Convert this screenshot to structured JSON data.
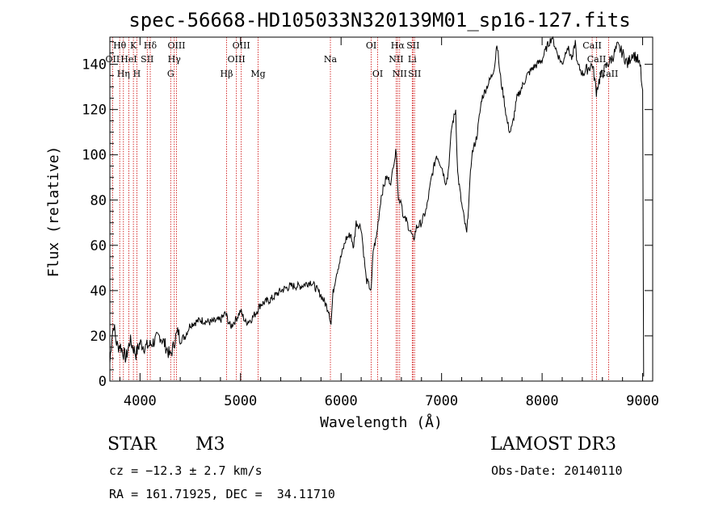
{
  "chart_data": {
    "type": "line",
    "title": "spec-56668-HD105033N320139M01_sp16-127.fits",
    "xlabel": "Wavelength (Å)",
    "ylabel": "Flux (relative)",
    "xlim": [
      3700,
      9100
    ],
    "ylim": [
      0,
      152
    ],
    "xticks": [
      4000,
      5000,
      6000,
      7000,
      8000,
      9000
    ],
    "yticks": [
      0,
      20,
      40,
      60,
      80,
      100,
      120,
      140
    ],
    "series": [
      {
        "name": "flux",
        "x": [
          3700,
          3720,
          3740,
          3760,
          3780,
          3800,
          3830,
          3860,
          3900,
          3930,
          3960,
          4000,
          4050,
          4100,
          4150,
          4200,
          4250,
          4300,
          4330,
          4350,
          4380,
          4400,
          4450,
          4500,
          4600,
          4700,
          4800,
          4850,
          4900,
          4950,
          5000,
          5050,
          5100,
          5150,
          5200,
          5300,
          5400,
          5500,
          5600,
          5700,
          5800,
          5880,
          5900,
          5920,
          5950,
          6000,
          6050,
          6100,
          6120,
          6150,
          6200,
          6250,
          6300,
          6320,
          6350,
          6400,
          6450,
          6500,
          6520,
          6550,
          6570,
          6600,
          6620,
          6650,
          6680,
          6700,
          6720,
          6750,
          6800,
          6850,
          6900,
          6950,
          7000,
          7040,
          7060,
          7080,
          7100,
          7140,
          7160,
          7200,
          7250,
          7300,
          7350,
          7400,
          7450,
          7500,
          7530,
          7550,
          7580,
          7600,
          7620,
          7650,
          7680,
          7700,
          7750,
          7800,
          7850,
          7900,
          7950,
          8000,
          8050,
          8100,
          8150,
          8200,
          8250,
          8300,
          8330,
          8350,
          8400,
          8450,
          8500,
          8540,
          8560,
          8600,
          8650,
          8700,
          8750,
          8800,
          8850,
          8900,
          8950,
          8980,
          9000,
          9010
        ],
        "values": [
          8,
          20,
          25,
          18,
          15,
          16,
          13,
          10,
          18,
          15,
          12,
          17,
          15,
          16,
          18,
          20,
          16,
          11,
          15,
          19,
          22,
          18,
          20,
          25,
          27,
          26,
          27,
          30,
          24,
          27,
          31,
          26,
          27,
          30,
          34,
          36,
          40,
          42,
          42,
          44,
          38,
          31,
          25,
          39,
          47,
          55,
          63,
          65,
          58,
          70,
          68,
          45,
          40,
          58,
          63,
          82,
          90,
          88,
          96,
          102,
          80,
          80,
          72,
          71,
          67,
          65,
          62,
          68,
          70,
          76,
          90,
          100,
          95,
          88,
          90,
          100,
          112,
          120,
          92,
          78,
          65,
          100,
          108,
          125,
          130,
          135,
          140,
          150,
          136,
          130,
          125,
          115,
          110,
          112,
          125,
          130,
          135,
          138,
          140,
          142,
          148,
          152,
          145,
          140,
          148,
          142,
          150,
          140,
          136,
          138,
          140,
          128,
          132,
          136,
          140,
          143,
          148,
          145,
          140,
          145,
          142,
          138,
          126,
          2
        ]
      }
    ],
    "spectral_lines": [
      {
        "label": "Hθ",
        "wavelength": 3798,
        "row": 0
      },
      {
        "label": "OII",
        "wavelength": 3727,
        "row": 1
      },
      {
        "label": "Hη",
        "wavelength": 3835,
        "row": 2
      },
      {
        "label": "K",
        "wavelength": 3934,
        "row": 0
      },
      {
        "label": "HeI",
        "wavelength": 3889,
        "row": 1
      },
      {
        "label": "H",
        "wavelength": 3969,
        "row": 2
      },
      {
        "label": "SII",
        "wavelength": 4072,
        "row": 1
      },
      {
        "label": "Hδ",
        "wavelength": 4102,
        "row": 0
      },
      {
        "label": "OIII",
        "wavelength": 4363,
        "row": 0
      },
      {
        "label": "Hγ",
        "wavelength": 4341,
        "row": 1
      },
      {
        "label": "G",
        "wavelength": 4305,
        "row": 2
      },
      {
        "label": "Hβ",
        "wavelength": 4861,
        "row": 2
      },
      {
        "label": "OIII",
        "wavelength": 5007,
        "row": 0
      },
      {
        "label": "OIII",
        "wavelength": 4959,
        "row": 1
      },
      {
        "label": "Mg",
        "wavelength": 5175,
        "row": 2
      },
      {
        "label": "Na",
        "wavelength": 5894,
        "row": 1
      },
      {
        "label": "OI",
        "wavelength": 6300,
        "row": 0
      },
      {
        "label": "OI",
        "wavelength": 6364,
        "row": 2
      },
      {
        "label": "Hα",
        "wavelength": 6563,
        "row": 0
      },
      {
        "label": "NII",
        "wavelength": 6548,
        "row": 1
      },
      {
        "label": "NII",
        "wavelength": 6583,
        "row": 2
      },
      {
        "label": "SII",
        "wavelength": 6716,
        "row": 0
      },
      {
        "label": "Li",
        "wavelength": 6708,
        "row": 1
      },
      {
        "label": "SII",
        "wavelength": 6731,
        "row": 2
      },
      {
        "label": "CaII",
        "wavelength": 8498,
        "row": 0
      },
      {
        "label": "CaII",
        "wavelength": 8542,
        "row": 1
      },
      {
        "label": "CaII",
        "wavelength": 8662,
        "row": 2
      }
    ]
  },
  "info": {
    "class": "STAR",
    "subclass": "M3",
    "survey": "LAMOST DR3",
    "cz": "cz = −12.3 ± 2.7 km/s",
    "obs_date": "Obs-Date: 20140110",
    "coords": "RA = 161.71925, DEC =  34.11710"
  },
  "colors": {
    "spectrum": "#000000",
    "line_marker": "#cc0000"
  }
}
